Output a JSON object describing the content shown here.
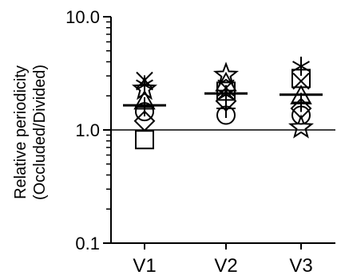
{
  "chart_data": {
    "type": "scatter",
    "title": "",
    "ylabel_line1": "Relative periodicity",
    "ylabel_line2": "(Occluded/Divided)",
    "xlabel": "",
    "scale": "log",
    "ylim": [
      0.1,
      10.0
    ],
    "y_ticks": [
      0.1,
      1.0,
      10.0
    ],
    "y_tick_labels": [
      "0.1",
      "1.0",
      "10.0"
    ],
    "reference_line": 1.0,
    "categories": [
      "V1",
      "V2",
      "V3"
    ],
    "means": [
      1.65,
      2.1,
      2.05
    ],
    "points": [
      [
        {
          "marker": "x",
          "value": 2.75
        },
        {
          "marker": "asterisk",
          "value": 2.5
        },
        {
          "marker": "star",
          "value": 2.3
        },
        {
          "marker": "triangle",
          "value": 1.8
        },
        {
          "marker": "plus",
          "value": 1.6
        },
        {
          "marker": "circle",
          "value": 1.45
        },
        {
          "marker": "diamond",
          "value": 1.2
        },
        {
          "marker": "square",
          "value": 0.82
        }
      ],
      [
        {
          "marker": "star",
          "value": 3.05
        },
        {
          "marker": "triangle",
          "value": 2.6
        },
        {
          "marker": "x",
          "value": 2.35
        },
        {
          "marker": "square",
          "value": 2.2
        },
        {
          "marker": "asterisk",
          "value": 2.05
        },
        {
          "marker": "diamond",
          "value": 1.8
        },
        {
          "marker": "plus",
          "value": 1.55
        },
        {
          "marker": "circle",
          "value": 1.35
        }
      ],
      [
        {
          "marker": "asterisk",
          "value": 3.65
        },
        {
          "marker": "square",
          "value": 2.85
        },
        {
          "marker": "x",
          "value": 2.7
        },
        {
          "marker": "triangle",
          "value": 2.0
        },
        {
          "marker": "plus",
          "value": 1.75
        },
        {
          "marker": "diamond",
          "value": 1.55
        },
        {
          "marker": "circle",
          "value": 1.35
        },
        {
          "marker": "star",
          "value": 1.05
        }
      ]
    ],
    "grid": false,
    "legend": "none"
  }
}
